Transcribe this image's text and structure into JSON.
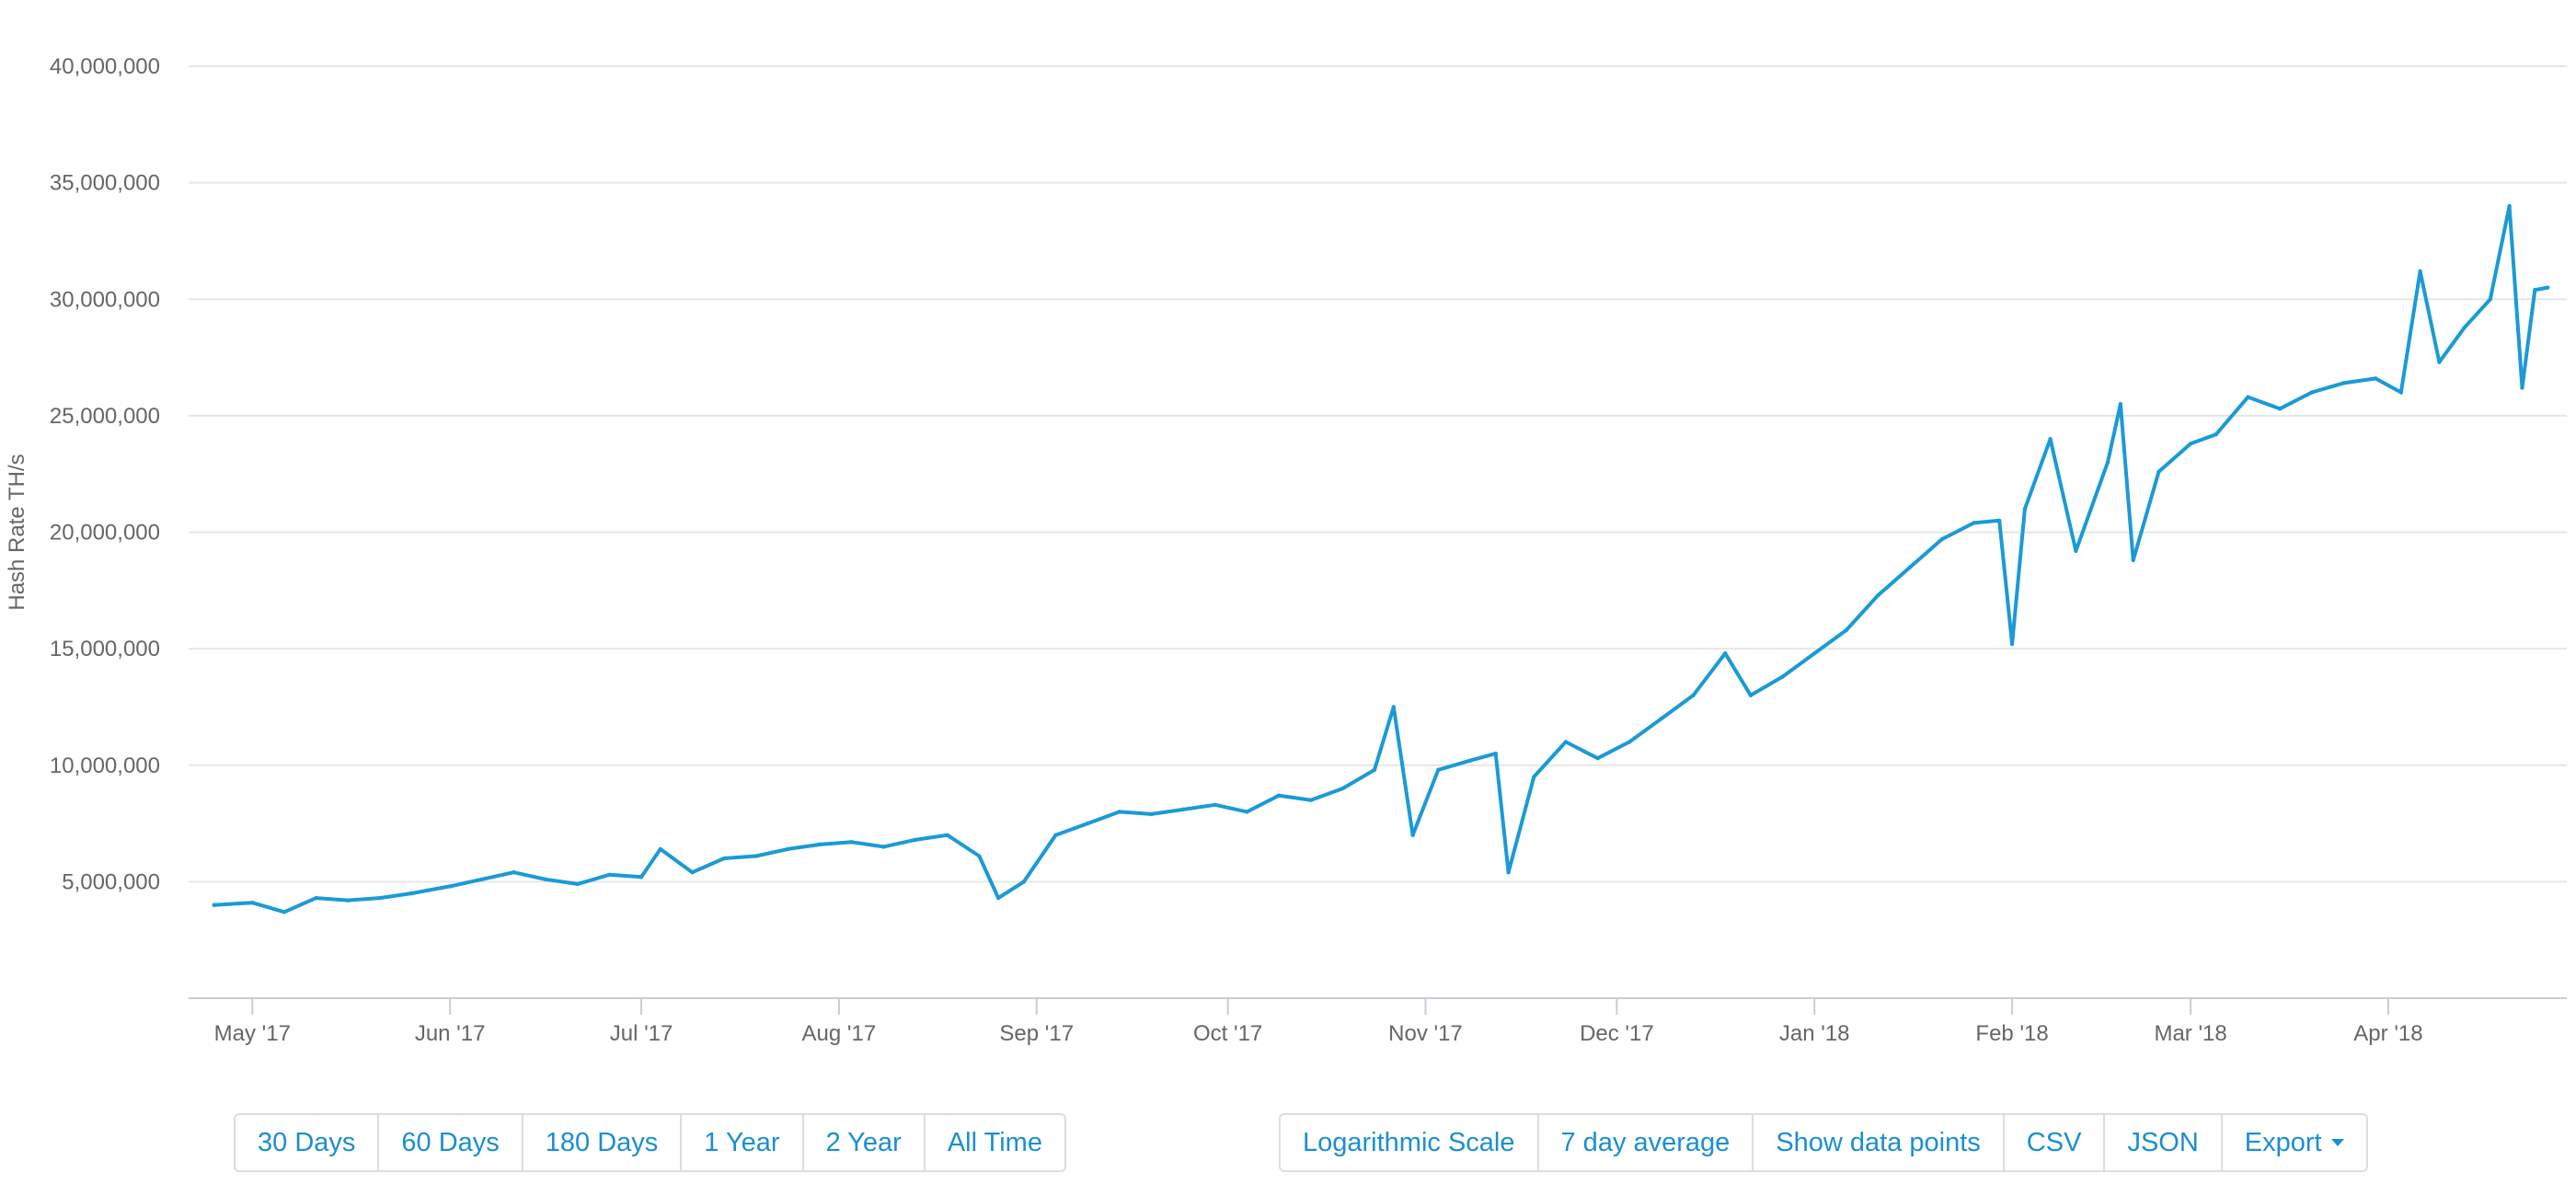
{
  "chart_data": {
    "type": "line",
    "ylabel": "Hash Rate TH/s",
    "xlabel": "",
    "ylim": [
      0,
      40000000
    ],
    "yticks": [
      {
        "value": 5000000,
        "label": "5,000,000"
      },
      {
        "value": 10000000,
        "label": "10,000,000"
      },
      {
        "value": 15000000,
        "label": "15,000,000"
      },
      {
        "value": 20000000,
        "label": "20,000,000"
      },
      {
        "value": 25000000,
        "label": "25,000,000"
      },
      {
        "value": 30000000,
        "label": "30,000,000"
      },
      {
        "value": 35000000,
        "label": "35,000,000"
      },
      {
        "value": 40000000,
        "label": "40,000,000"
      }
    ],
    "xlim": [
      "2017-04-21",
      "2018-04-29"
    ],
    "xticks": [
      {
        "date": "2017-05-01",
        "label": "May '17"
      },
      {
        "date": "2017-06-01",
        "label": "Jun '17"
      },
      {
        "date": "2017-07-01",
        "label": "Jul '17"
      },
      {
        "date": "2017-08-01",
        "label": "Aug '17"
      },
      {
        "date": "2017-09-01",
        "label": "Sep '17"
      },
      {
        "date": "2017-10-01",
        "label": "Oct '17"
      },
      {
        "date": "2017-11-01",
        "label": "Nov '17"
      },
      {
        "date": "2017-12-01",
        "label": "Dec '17"
      },
      {
        "date": "2018-01-01",
        "label": "Jan '18"
      },
      {
        "date": "2018-02-01",
        "label": "Feb '18"
      },
      {
        "date": "2018-03-01",
        "label": "Mar '18"
      },
      {
        "date": "2018-04-01",
        "label": "Apr '18"
      }
    ],
    "grid": true,
    "line_color": "#1b9ad6",
    "series": [
      {
        "points": [
          [
            "2017-04-25",
            4000000
          ],
          [
            "2017-05-01",
            4100000
          ],
          [
            "2017-05-06",
            3700000
          ],
          [
            "2017-05-11",
            4300000
          ],
          [
            "2017-05-16",
            4200000
          ],
          [
            "2017-05-21",
            4300000
          ],
          [
            "2017-05-26",
            4500000
          ],
          [
            "2017-06-01",
            4800000
          ],
          [
            "2017-06-06",
            5100000
          ],
          [
            "2017-06-11",
            5400000
          ],
          [
            "2017-06-16",
            5100000
          ],
          [
            "2017-06-21",
            4900000
          ],
          [
            "2017-06-26",
            5300000
          ],
          [
            "2017-07-01",
            5200000
          ],
          [
            "2017-07-04",
            6400000
          ],
          [
            "2017-07-09",
            5400000
          ],
          [
            "2017-07-14",
            6000000
          ],
          [
            "2017-07-19",
            6100000
          ],
          [
            "2017-07-24",
            6400000
          ],
          [
            "2017-07-29",
            6600000
          ],
          [
            "2017-08-03",
            6700000
          ],
          [
            "2017-08-08",
            6500000
          ],
          [
            "2017-08-13",
            6800000
          ],
          [
            "2017-08-18",
            7000000
          ],
          [
            "2017-08-23",
            6100000
          ],
          [
            "2017-08-26",
            4300000
          ],
          [
            "2017-08-30",
            5000000
          ],
          [
            "2017-09-04",
            7000000
          ],
          [
            "2017-09-09",
            7500000
          ],
          [
            "2017-09-14",
            8000000
          ],
          [
            "2017-09-19",
            7900000
          ],
          [
            "2017-09-24",
            8100000
          ],
          [
            "2017-09-29",
            8300000
          ],
          [
            "2017-10-04",
            8000000
          ],
          [
            "2017-10-09",
            8700000
          ],
          [
            "2017-10-14",
            8500000
          ],
          [
            "2017-10-19",
            9000000
          ],
          [
            "2017-10-24",
            9800000
          ],
          [
            "2017-10-27",
            12500000
          ],
          [
            "2017-10-30",
            7000000
          ],
          [
            "2017-11-03",
            9800000
          ],
          [
            "2017-11-08",
            10200000
          ],
          [
            "2017-11-12",
            10500000
          ],
          [
            "2017-11-14",
            5400000
          ],
          [
            "2017-11-18",
            9500000
          ],
          [
            "2017-11-23",
            11000000
          ],
          [
            "2017-11-28",
            10300000
          ],
          [
            "2017-12-03",
            11000000
          ],
          [
            "2017-12-08",
            12000000
          ],
          [
            "2017-12-13",
            13000000
          ],
          [
            "2017-12-18",
            14800000
          ],
          [
            "2017-12-22",
            13000000
          ],
          [
            "2017-12-27",
            13800000
          ],
          [
            "2018-01-01",
            14800000
          ],
          [
            "2018-01-06",
            15800000
          ],
          [
            "2018-01-11",
            17300000
          ],
          [
            "2018-01-16",
            18500000
          ],
          [
            "2018-01-21",
            19700000
          ],
          [
            "2018-01-26",
            20400000
          ],
          [
            "2018-01-30",
            20500000
          ],
          [
            "2018-02-01",
            15200000
          ],
          [
            "2018-02-03",
            21000000
          ],
          [
            "2018-02-07",
            24000000
          ],
          [
            "2018-02-11",
            19200000
          ],
          [
            "2018-02-16",
            23000000
          ],
          [
            "2018-02-18",
            25500000
          ],
          [
            "2018-02-20",
            18800000
          ],
          [
            "2018-02-24",
            22600000
          ],
          [
            "2018-03-01",
            23800000
          ],
          [
            "2018-03-05",
            24200000
          ],
          [
            "2018-03-10",
            25800000
          ],
          [
            "2018-03-15",
            25300000
          ],
          [
            "2018-03-20",
            26000000
          ],
          [
            "2018-03-25",
            26400000
          ],
          [
            "2018-03-30",
            26600000
          ],
          [
            "2018-04-03",
            26000000
          ],
          [
            "2018-04-06",
            31200000
          ],
          [
            "2018-04-09",
            27300000
          ],
          [
            "2018-04-13",
            28800000
          ],
          [
            "2018-04-17",
            30000000
          ],
          [
            "2018-04-20",
            34000000
          ],
          [
            "2018-04-22",
            26200000
          ],
          [
            "2018-04-24",
            30400000
          ],
          [
            "2018-04-26",
            30500000
          ]
        ]
      }
    ]
  },
  "range_buttons": [
    "30 Days",
    "60 Days",
    "180 Days",
    "1 Year",
    "2 Year",
    "All Time"
  ],
  "option_buttons": [
    "Logarithmic Scale",
    "7 day average",
    "Show data points",
    "CSV",
    "JSON",
    "Export"
  ]
}
